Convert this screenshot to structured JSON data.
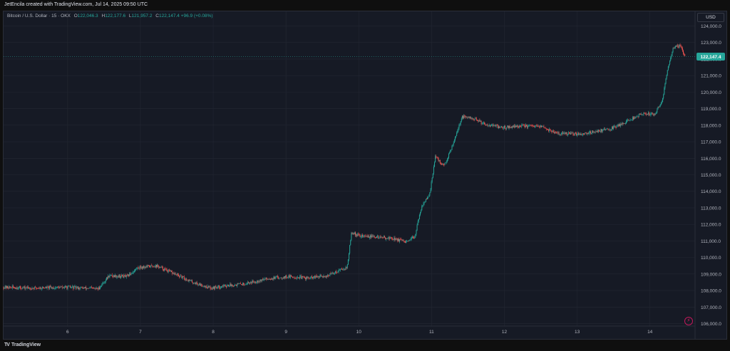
{
  "header": {
    "credit": "JetEncila created with TradingView.com, Jul 14, 2025 09:50 UTC"
  },
  "legend": {
    "symbol": "Bitcoin / U.S. Dollar · 15 · OKX",
    "open_label": "O",
    "open": "122,046.3",
    "high_label": "H",
    "high": "122,177.6",
    "low_label": "L",
    "low": "121,957.2",
    "close_label": "C",
    "close": "122,147.4",
    "change": "+96.9 (+0.08%)"
  },
  "currency_button": "USD",
  "footer": {
    "brand": "TradingView",
    "logo_icon": "tradingview-logo-icon"
  },
  "colors": {
    "background": "#161a25",
    "grid": "#232733",
    "up": "#26a69a",
    "down": "#ef5350",
    "axis_text": "#b2b5be",
    "price_tag": "#26a69a"
  },
  "chart_data": {
    "type": "candlestick",
    "symbol": "Bitcoin / U.S. Dollar",
    "interval": "15",
    "exchange": "OKX",
    "currency": "USD",
    "x_ticks": [
      "6",
      "7",
      "8",
      "9",
      "10",
      "11",
      "12",
      "13",
      "14"
    ],
    "x_tick_values": [
      5.88,
      6.88,
      7.88,
      8.88,
      9.88,
      10.88,
      11.88,
      12.88,
      13.88
    ],
    "xlim": [
      5.0,
      14.5
    ],
    "y_ticks": [
      "106,000.0",
      "107,000.0",
      "108,000.0",
      "109,000.0",
      "110,000.0",
      "111,000.0",
      "112,000.0",
      "113,000.0",
      "114,000.0",
      "115,000.0",
      "116,000.0",
      "117,000.0",
      "118,000.0",
      "119,000.0",
      "120,000.0",
      "121,000.0",
      "122,000.0",
      "123,000.0",
      "124,000.0"
    ],
    "y_tick_values": [
      106000,
      107000,
      108000,
      109000,
      110000,
      111000,
      112000,
      113000,
      114000,
      115000,
      116000,
      117000,
      118000,
      119000,
      120000,
      121000,
      122000,
      123000,
      124000
    ],
    "ylim": [
      105850,
      124150
    ],
    "last_price": 122147.4,
    "last_price_label": "122,147.4",
    "grid": true,
    "approx_path": [
      [
        5.0,
        108200
      ],
      [
        5.4,
        108150
      ],
      [
        5.9,
        108200
      ],
      [
        6.3,
        108100
      ],
      [
        6.45,
        108900
      ],
      [
        6.7,
        108850
      ],
      [
        6.85,
        109400
      ],
      [
        7.1,
        109500
      ],
      [
        7.4,
        108900
      ],
      [
        7.6,
        108500
      ],
      [
        7.85,
        108150
      ],
      [
        8.05,
        108300
      ],
      [
        8.3,
        108400
      ],
      [
        8.6,
        108700
      ],
      [
        8.9,
        108850
      ],
      [
        9.2,
        108750
      ],
      [
        9.45,
        108900
      ],
      [
        9.65,
        109300
      ],
      [
        9.72,
        109400
      ],
      [
        9.78,
        111500
      ],
      [
        9.9,
        111300
      ],
      [
        10.1,
        111250
      ],
      [
        10.35,
        111150
      ],
      [
        10.55,
        110900
      ],
      [
        10.65,
        111300
      ],
      [
        10.75,
        113200
      ],
      [
        10.85,
        113700
      ],
      [
        10.93,
        116100
      ],
      [
        11.05,
        115500
      ],
      [
        11.15,
        116600
      ],
      [
        11.3,
        118500
      ],
      [
        11.45,
        118400
      ],
      [
        11.6,
        118100
      ],
      [
        11.85,
        117850
      ],
      [
        12.1,
        117950
      ],
      [
        12.4,
        117900
      ],
      [
        12.6,
        117500
      ],
      [
        12.9,
        117450
      ],
      [
        13.1,
        117600
      ],
      [
        13.35,
        117800
      ],
      [
        13.55,
        118200
      ],
      [
        13.75,
        118650
      ],
      [
        13.95,
        118700
      ],
      [
        14.05,
        119500
      ],
      [
        14.12,
        121300
      ],
      [
        14.2,
        122700
      ],
      [
        14.3,
        122800
      ],
      [
        14.36,
        122147.4
      ]
    ]
  }
}
